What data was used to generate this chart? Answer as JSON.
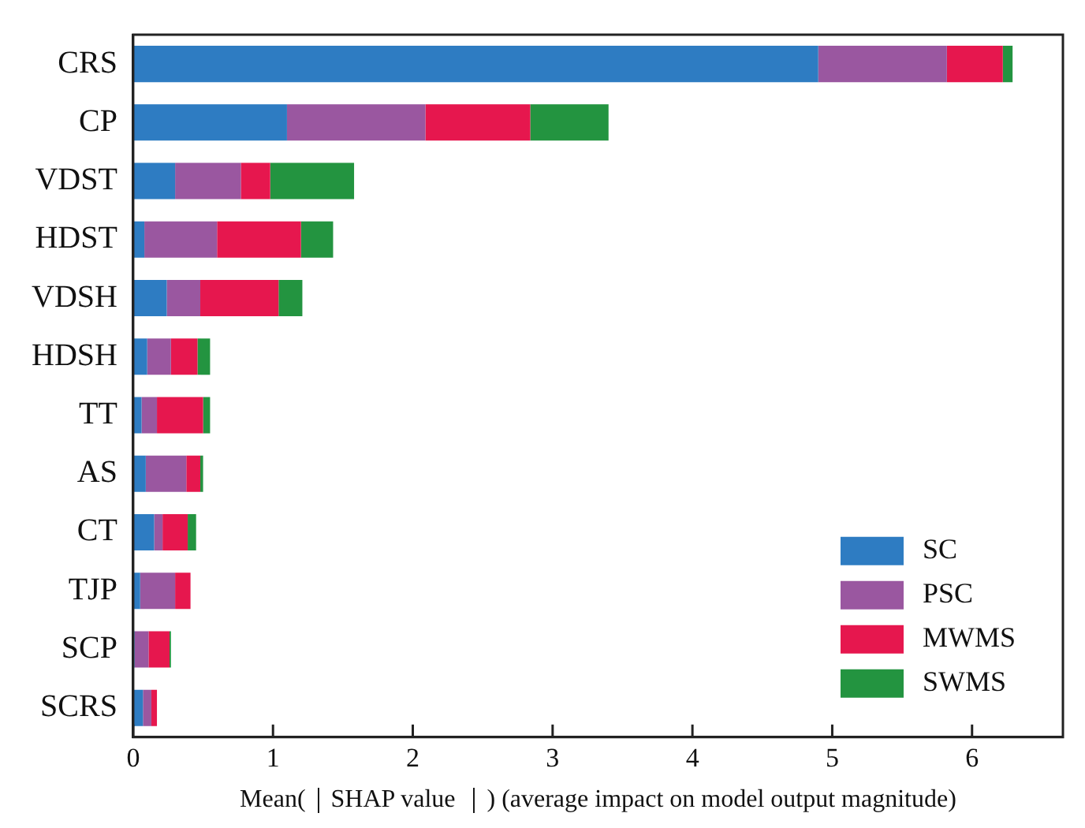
{
  "chart_data": {
    "type": "bar",
    "orientation": "horizontal",
    "stacked": true,
    "xlabel": "Mean(｜SHAP value ｜) (average impact on model output magnitude)",
    "categories": [
      "CRS",
      "CP",
      "VDST",
      "HDST",
      "VDSH",
      "HDSH",
      "TT",
      "AS",
      "CT",
      "TJP",
      "SCP",
      "SCRS"
    ],
    "series": [
      {
        "name": "SC",
        "color": "#2e7cc2",
        "values": [
          4.9,
          1.1,
          0.3,
          0.08,
          0.24,
          0.1,
          0.06,
          0.09,
          0.15,
          0.05,
          0.01,
          0.07
        ]
      },
      {
        "name": "PSC",
        "color": "#9a57a0",
        "values": [
          0.92,
          0.99,
          0.47,
          0.52,
          0.24,
          0.17,
          0.11,
          0.29,
          0.06,
          0.25,
          0.1,
          0.06
        ]
      },
      {
        "name": "MWMS",
        "color": "#e6174e",
        "values": [
          0.4,
          0.75,
          0.21,
          0.6,
          0.56,
          0.19,
          0.33,
          0.1,
          0.18,
          0.11,
          0.15,
          0.04
        ]
      },
      {
        "name": "SWMS",
        "color": "#239440",
        "values": [
          0.07,
          0.56,
          0.6,
          0.23,
          0.17,
          0.09,
          0.05,
          0.02,
          0.06,
          0.0,
          0.01,
          0.0
        ]
      }
    ],
    "xlim": [
      0,
      6.65
    ],
    "xticks": [
      0,
      1,
      2,
      3,
      4,
      5,
      6
    ],
    "grid": false,
    "legend": "bottom right"
  }
}
